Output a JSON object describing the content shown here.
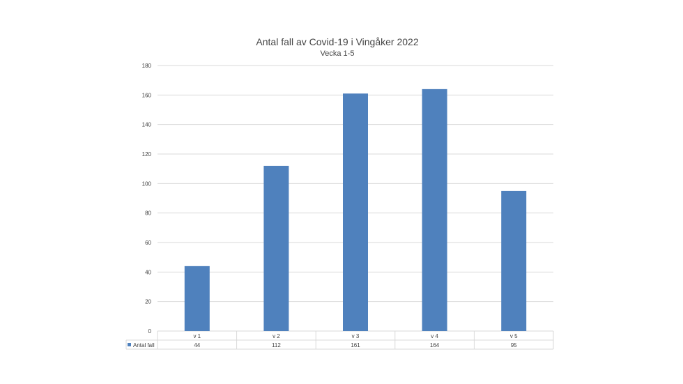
{
  "chart_data": {
    "type": "bar",
    "title": "Antal fall av Covid-19 i Vingåker 2022",
    "subtitle": "Vecka 1-5",
    "categories": [
      "v 1",
      "v 2",
      "v 3",
      "v 4",
      "v 5"
    ],
    "series": [
      {
        "name": "Antal fall",
        "values": [
          44,
          112,
          161,
          164,
          95
        ],
        "color": "#4f81bd"
      }
    ],
    "yticks": [
      0,
      20,
      40,
      60,
      80,
      100,
      120,
      140,
      160,
      180
    ],
    "ylim": [
      0,
      180
    ],
    "grid": true,
    "legend": "data-table"
  }
}
